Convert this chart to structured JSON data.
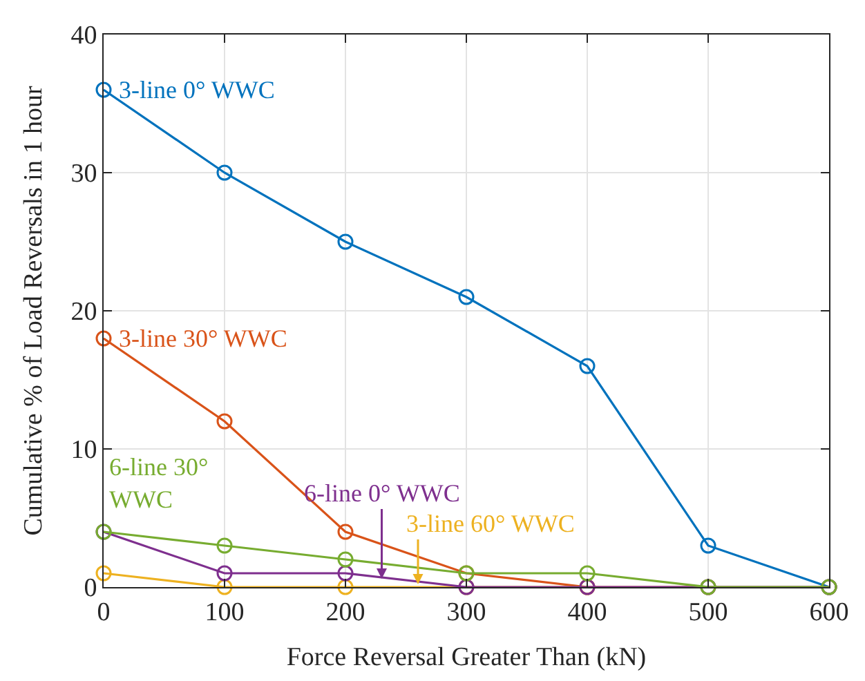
{
  "chart_data": {
    "type": "line",
    "xlabel": "Force Reversal Greater Than (kN)",
    "ylabel": "Cumulative % of Load Reversals in 1 hour",
    "x": [
      0,
      100,
      200,
      300,
      400,
      500,
      600
    ],
    "series": [
      {
        "name": "3-line 0° WWC",
        "color": "#0072bd",
        "values": [
          36,
          30,
          25,
          21,
          16,
          3,
          0
        ]
      },
      {
        "name": "3-line 30° WWC",
        "color": "#d95319",
        "values": [
          18,
          12,
          4,
          1,
          0,
          0,
          0
        ]
      },
      {
        "name": "3-line 60° WWC",
        "color": "#edb120",
        "values": [
          1,
          0,
          0,
          0,
          0,
          null,
          null
        ]
      },
      {
        "name": "6-line 0° WWC",
        "color": "#7e2f8e",
        "values": [
          4,
          1,
          1,
          0,
          0,
          0,
          0
        ]
      },
      {
        "name": "6-line 30° WWC",
        "color": "#77ac30",
        "values": [
          4,
          3,
          2,
          1,
          1,
          0,
          0
        ]
      }
    ],
    "xlim": [
      0,
      600
    ],
    "xticks": [
      0,
      100,
      200,
      300,
      400,
      500,
      600
    ],
    "ylim": [
      0,
      40
    ],
    "yticks": [
      0,
      10,
      20,
      30,
      40
    ],
    "grid": true,
    "legend": false,
    "marker": "circle",
    "line_style": "solid"
  }
}
